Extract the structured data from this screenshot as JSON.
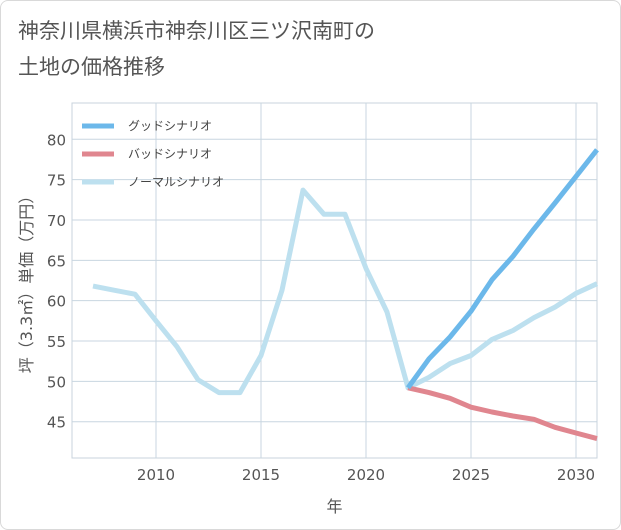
{
  "title_line1": "神奈川県横浜市神奈川区三ツ沢南町の",
  "title_line2": "土地の価格推移",
  "chart_data": {
    "type": "line",
    "title": "神奈川県横浜市神奈川区三ツ沢南町の土地の価格推移",
    "xlabel": "年",
    "ylabel": "坪（3.3㎡）単価（万円）",
    "xlim": [
      2006,
      2031
    ],
    "ylim": [
      40.5,
      84.5
    ],
    "xticks": [
      2010,
      2015,
      2020,
      2025,
      2030
    ],
    "yticks": [
      45,
      50,
      55,
      60,
      65,
      70,
      75,
      80
    ],
    "grid": true,
    "legend_position": "top-left",
    "series": [
      {
        "name": "グッドシナリオ",
        "color": "#6cb8ea",
        "x": [
          2022,
          2023,
          2024,
          2025,
          2026,
          2027,
          2028,
          2029,
          2030,
          2031
        ],
        "y": [
          49.2,
          52.8,
          55.5,
          58.7,
          62.6,
          65.5,
          68.9,
          72.1,
          75.4,
          78.7
        ]
      },
      {
        "name": "バッドシナリオ",
        "color": "#e0868f",
        "x": [
          2022,
          2023,
          2024,
          2025,
          2026,
          2027,
          2028,
          2029,
          2030,
          2031
        ],
        "y": [
          49.2,
          48.6,
          47.9,
          46.8,
          46.2,
          45.7,
          45.3,
          44.3,
          43.6,
          42.9
        ]
      },
      {
        "name": "ノーマルシナリオ",
        "color": "#bde0ef",
        "x": [
          2007,
          2008,
          2009,
          2010,
          2011,
          2012,
          2013,
          2014,
          2015,
          2016,
          2017,
          2018,
          2019,
          2020,
          2021,
          2022,
          2023,
          2024,
          2025,
          2026,
          2027,
          2028,
          2029,
          2030,
          2031
        ],
        "y": [
          61.8,
          61.3,
          60.8,
          57.5,
          54.3,
          50.2,
          48.6,
          48.6,
          53.2,
          61.3,
          73.7,
          70.7,
          70.7,
          64.0,
          58.6,
          49.2,
          50.5,
          52.2,
          53.2,
          55.2,
          56.3,
          57.9,
          59.2,
          60.9,
          62.1
        ]
      }
    ]
  }
}
